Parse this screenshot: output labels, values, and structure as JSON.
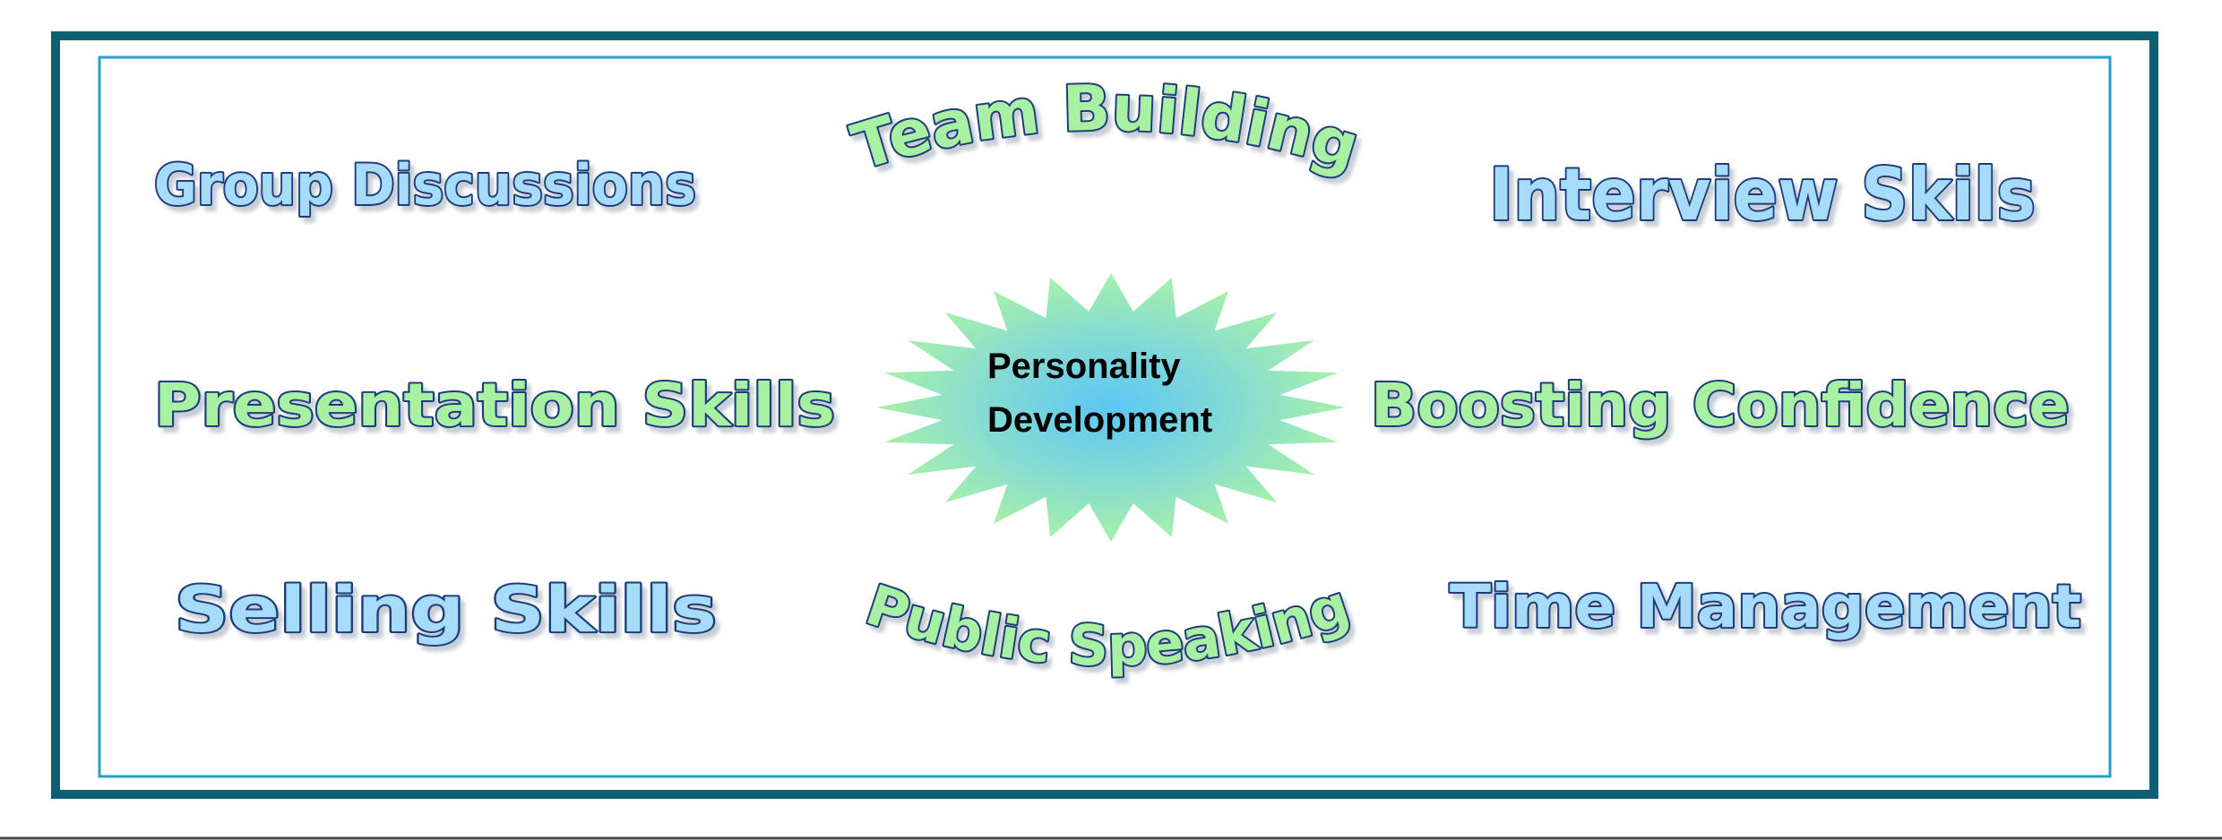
{
  "center": {
    "line1": "Personality",
    "line2": "Development"
  },
  "skills": {
    "group_discussions": "Group Discussions",
    "team_building": "Team Building",
    "interview_skills": "Interview Skils",
    "presentation_skills": "Presentation Skills",
    "boosting_confidence": "Boosting Confidence",
    "selling_skills": "Selling Skills",
    "public_speaking": "Public Speaking",
    "time_management": "Time Management"
  },
  "colors": {
    "outer_border": "#0e5f73",
    "inner_border": "#2a9ec4",
    "sky_fill": "#a6dcfa",
    "mint_fill": "#a8f0a2",
    "text_outline": "#1f3d7a",
    "star_center": "#5cc7f5",
    "star_edge": "#a7f0a9"
  }
}
